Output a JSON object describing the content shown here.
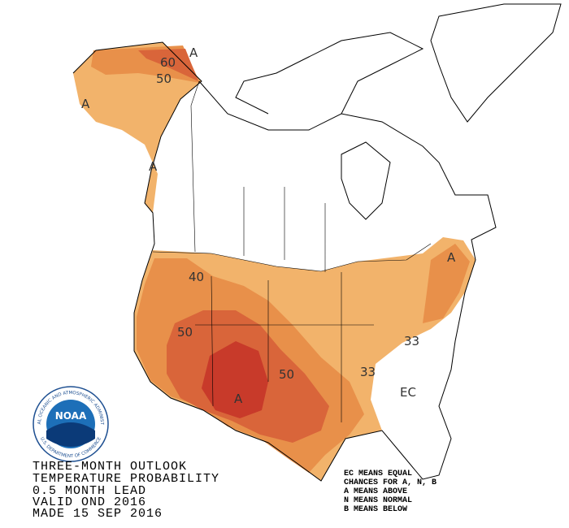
{
  "title_lines": [
    "THREE-MONTH OUTLOOK",
    "TEMPERATURE PROBABILITY",
    "0.5 MONTH LEAD",
    "VALID OND 2016",
    "MADE 15 SEP 2016"
  ],
  "legend_lines": [
    "EC MEANS EQUAL",
    "CHANCES FOR A, N, B",
    "A MEANS ABOVE",
    "N MEANS NORMAL",
    "B MEANS BELOW"
  ],
  "map_labels": [
    "A",
    "60",
    "50",
    "A",
    "A",
    "40",
    "50",
    "50",
    "A",
    "33",
    "33",
    "A",
    "EC"
  ],
  "logo": {
    "name": "NOAA",
    "ring_top": "NATIONAL OCEANIC AND ATMOSPHERIC ADMINISTRATION",
    "ring_bottom": "U.S. DEPARTMENT OF COMMERCE"
  }
}
